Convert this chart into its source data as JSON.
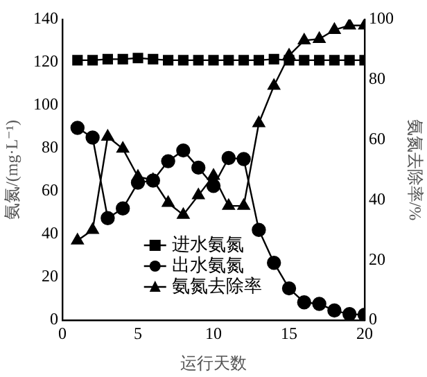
{
  "chart_data": {
    "type": "line",
    "xlabel": "运行天数",
    "ylabel": "氨氮/(mg·L⁻¹)",
    "y2label": "氨氮去除率/%",
    "x": [
      1,
      2,
      3,
      4,
      5,
      6,
      7,
      8,
      9,
      10,
      11,
      12,
      13,
      14,
      15,
      16,
      17,
      18,
      19,
      20
    ],
    "series": [
      {
        "name": "进水氨氮",
        "color": "#000000",
        "marker": "square",
        "values": [
          121,
          121,
          121.5,
          121.5,
          122,
          121.5,
          121,
          121,
          121,
          121,
          121,
          121,
          121,
          121.5,
          121,
          121,
          121,
          121,
          121,
          121
        ]
      },
      {
        "name": "出水氨氮",
        "color": "#000000",
        "marker": "circle",
        "values": [
          89.5,
          85,
          47.5,
          52,
          64,
          65,
          74,
          79,
          71,
          62.5,
          75.5,
          75,
          42,
          26.7,
          14.8,
          8.3,
          7.6,
          4.5,
          2.8,
          2.5
        ]
      },
      {
        "name": "氨氮去除率",
        "color": "#000000",
        "marker": "triangle",
        "axis": "y2",
        "values": [
          26.5,
          30,
          61,
          57,
          47.7,
          46.6,
          39,
          35,
          41.5,
          48,
          38,
          38,
          65.5,
          77.9,
          88,
          93,
          93.5,
          96.5,
          98,
          98
        ]
      }
    ],
    "xlim": [
      0,
      20
    ],
    "xticks": [
      0,
      5,
      10,
      15,
      20
    ],
    "ylim": [
      0,
      140
    ],
    "yticks": [
      0,
      20,
      40,
      60,
      80,
      100,
      120,
      140
    ],
    "y2lim": [
      0,
      100
    ],
    "y2ticks": [
      0,
      20,
      40,
      60,
      80,
      100
    ],
    "grid": false,
    "legend": "bottom left",
    "line_style": "solid"
  }
}
